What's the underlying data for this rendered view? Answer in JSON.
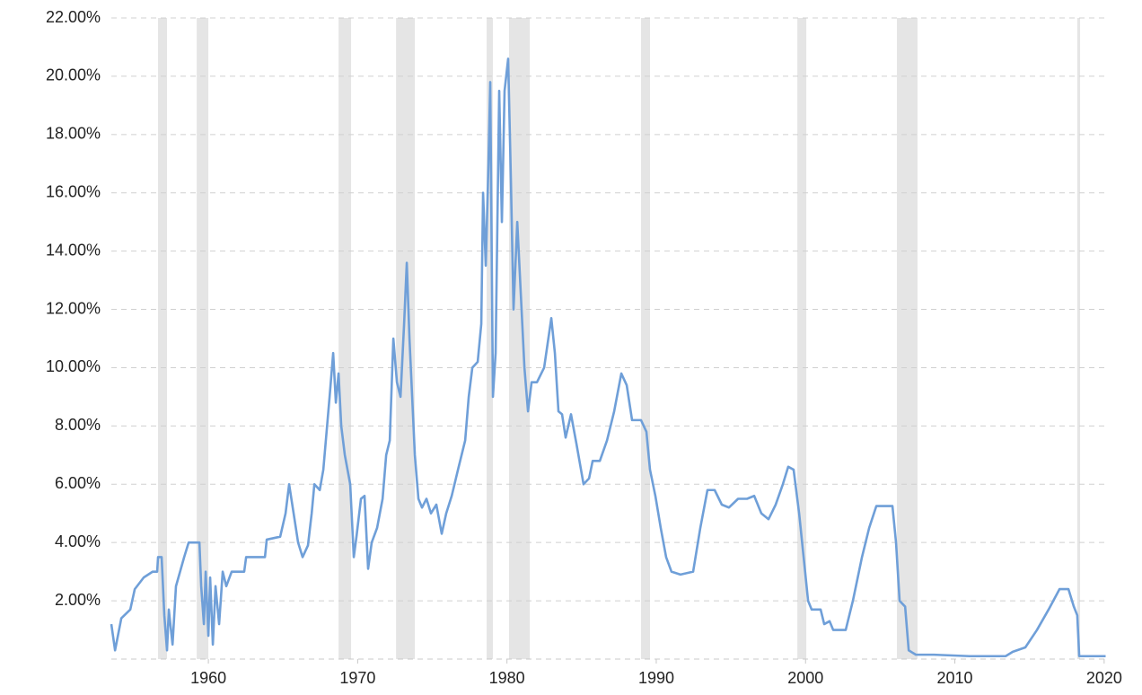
{
  "chart_data": {
    "type": "line",
    "color": "#6f9fd8",
    "band_color": "#e5e5e5",
    "grid": true,
    "xlim": [
      1953.5,
      2020.13
    ],
    "xticks": [
      1960,
      1970,
      1980,
      1990,
      2000,
      2010,
      2020
    ],
    "ylim": [
      0,
      22
    ],
    "yticks": [
      {
        "value": 2,
        "label": "2.00%"
      },
      {
        "value": 4,
        "label": "4.00%"
      },
      {
        "value": 6,
        "label": "6.00%"
      },
      {
        "value": 8,
        "label": "8.00%"
      },
      {
        "value": 10,
        "label": "10.00%"
      },
      {
        "value": 12,
        "label": "12.00%"
      },
      {
        "value": 14,
        "label": "14.00%"
      },
      {
        "value": 16,
        "label": "16.00%"
      },
      {
        "value": 18,
        "label": "18.00%"
      },
      {
        "value": 20,
        "label": "20.00%"
      },
      {
        "value": 22,
        "label": "22.00%"
      }
    ],
    "shaded_ranges": [
      [
        1956.63,
        1957.23
      ],
      [
        1959.22,
        1960.0
      ],
      [
        1968.72,
        1969.56
      ],
      [
        1972.57,
        1973.83
      ],
      [
        1978.64,
        1979.06
      ],
      [
        1980.14,
        1981.53
      ],
      [
        1988.98,
        1989.58
      ],
      [
        1999.45,
        2000.05
      ],
      [
        2006.12,
        2007.5
      ],
      [
        2018.2,
        2018.39
      ]
    ],
    "x": [
      1953.5,
      1953.75,
      1954.17,
      1954.77,
      1955.07,
      1955.67,
      1956.27,
      1956.57,
      1956.63,
      1956.87,
      1957.05,
      1957.23,
      1957.35,
      1957.6,
      1957.83,
      1958.38,
      1958.68,
      1959.4,
      1959.52,
      1959.7,
      1959.82,
      1960.0,
      1960.12,
      1960.3,
      1960.48,
      1960.72,
      1960.96,
      1961.2,
      1961.56,
      1962.4,
      1962.53,
      1963.79,
      1963.91,
      1964.81,
      1965.17,
      1965.41,
      1965.65,
      1966.01,
      1966.31,
      1966.67,
      1966.92,
      1967.1,
      1967.46,
      1967.7,
      1968.12,
      1968.36,
      1968.54,
      1968.72,
      1968.9,
      1969.14,
      1969.5,
      1969.74,
      1969.92,
      1970.22,
      1970.46,
      1970.7,
      1970.94,
      1971.3,
      1971.67,
      1971.91,
      1972.15,
      1972.39,
      1972.63,
      1972.87,
      1973.11,
      1973.29,
      1973.47,
      1973.65,
      1973.83,
      1974.07,
      1974.31,
      1974.61,
      1974.91,
      1975.27,
      1975.63,
      1975.93,
      1976.3,
      1976.72,
      1977.2,
      1977.44,
      1977.68,
      1978.04,
      1978.28,
      1978.4,
      1978.58,
      1978.76,
      1978.88,
      1979.06,
      1979.24,
      1979.48,
      1979.66,
      1979.84,
      1980.08,
      1980.26,
      1980.44,
      1980.69,
      1980.93,
      1981.17,
      1981.41,
      1981.65,
      1982.01,
      1982.49,
      1982.97,
      1983.21,
      1983.45,
      1983.69,
      1983.93,
      1984.29,
      1984.65,
      1985.13,
      1985.5,
      1985.74,
      1986.22,
      1986.7,
      1987.18,
      1987.66,
      1988.02,
      1988.38,
      1988.98,
      1989.34,
      1989.58,
      1989.94,
      1990.3,
      1990.66,
      1991.02,
      1991.62,
      1992.47,
      1992.95,
      1993.43,
      1993.91,
      1994.39,
      1994.87,
      1995.48,
      1996.08,
      1996.56,
      1997.04,
      1997.52,
      1998.0,
      1998.48,
      1998.84,
      1999.2,
      1999.57,
      1999.87,
      2000.17,
      2000.41,
      2001.01,
      2001.25,
      2001.61,
      2001.85,
      2002.69,
      2003.17,
      2003.78,
      2004.26,
      2004.74,
      2005.82,
      2006.06,
      2006.3,
      2006.67,
      2006.91,
      2007.39,
      2008.59,
      2010.99,
      2013.4,
      2013.88,
      2014.72,
      2015.5,
      2016.28,
      2017.01,
      2017.61,
      2017.97,
      2018.2,
      2018.33,
      2020.1
    ],
    "values": [
      1.2,
      0.3,
      1.4,
      1.7,
      2.4,
      2.8,
      3.0,
      3.0,
      3.5,
      3.5,
      1.5,
      0.3,
      1.7,
      0.5,
      2.5,
      3.5,
      4.0,
      4.0,
      2.5,
      1.2,
      3.0,
      0.8,
      2.8,
      0.5,
      2.5,
      1.2,
      3.0,
      2.5,
      3.0,
      3.0,
      3.5,
      3.5,
      4.1,
      4.2,
      5.0,
      6.0,
      5.2,
      4.0,
      3.5,
      3.9,
      5.0,
      6.0,
      5.8,
      6.5,
      9.0,
      10.5,
      8.8,
      9.8,
      8.0,
      7.0,
      6.0,
      3.5,
      4.2,
      5.5,
      5.6,
      3.1,
      4.0,
      4.5,
      5.5,
      7.0,
      7.5,
      11.0,
      9.5,
      9.0,
      11.5,
      13.6,
      11.0,
      9.0,
      7.0,
      5.5,
      5.2,
      5.5,
      5.0,
      5.3,
      4.3,
      5.0,
      5.6,
      6.5,
      7.5,
      9.0,
      10.0,
      10.2,
      11.5,
      16.0,
      13.5,
      17.0,
      19.8,
      9.0,
      10.5,
      19.5,
      15.0,
      19.5,
      20.6,
      16.5,
      12.0,
      15.0,
      12.5,
      10.0,
      8.5,
      9.5,
      9.5,
      10.0,
      11.7,
      10.5,
      8.5,
      8.4,
      7.6,
      8.4,
      7.4,
      6.0,
      6.2,
      6.8,
      6.8,
      7.5,
      8.5,
      9.8,
      9.4,
      8.2,
      8.2,
      7.8,
      6.5,
      5.6,
      4.5,
      3.5,
      3.0,
      2.9,
      3.0,
      4.5,
      5.8,
      5.8,
      5.3,
      5.2,
      5.5,
      5.5,
      5.6,
      5.0,
      4.8,
      5.3,
      6.0,
      6.6,
      6.5,
      5.0,
      3.5,
      2.0,
      1.7,
      1.7,
      1.2,
      1.3,
      1.0,
      1.0,
      2.0,
      3.5,
      4.5,
      5.25,
      5.25,
      4.0,
      2.0,
      1.8,
      0.3,
      0.15,
      0.15,
      0.1,
      0.1,
      0.25,
      0.4,
      1.0,
      1.7,
      2.4,
      2.4,
      1.8,
      1.5,
      0.1,
      0.1
    ]
  }
}
